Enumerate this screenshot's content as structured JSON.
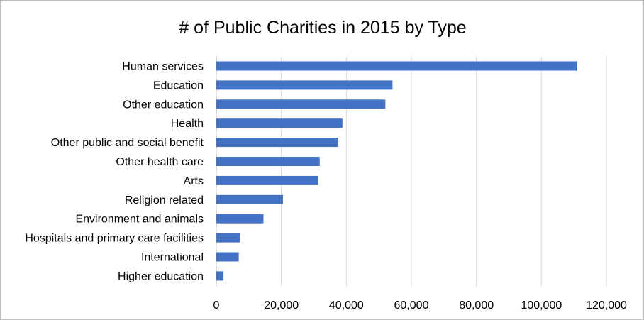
{
  "chart_data": {
    "type": "bar",
    "orientation": "horizontal",
    "title": "# of Public Charities in 2015 by Type",
    "xlabel": "",
    "ylabel": "",
    "categories": [
      "Human services",
      "Education",
      "Other education",
      "Health",
      "Other public and social benefit",
      "Other health care",
      "Arts",
      "Religion related",
      "Environment and animals",
      "Hospitals and primary care facilities",
      "International",
      "Higher education"
    ],
    "values": [
      111000,
      54200,
      52000,
      38800,
      37500,
      31800,
      31400,
      20500,
      14500,
      7200,
      6900,
      2200
    ],
    "xlim": [
      0,
      120000
    ],
    "ticks": [
      0,
      20000,
      40000,
      60000,
      80000,
      100000,
      120000
    ],
    "tick_labels": [
      "0",
      "20,000",
      "40,000",
      "60,000",
      "80,000",
      "100,000",
      "120,000"
    ],
    "grid": true,
    "legend": "none",
    "bar_color": "#4472c4"
  }
}
